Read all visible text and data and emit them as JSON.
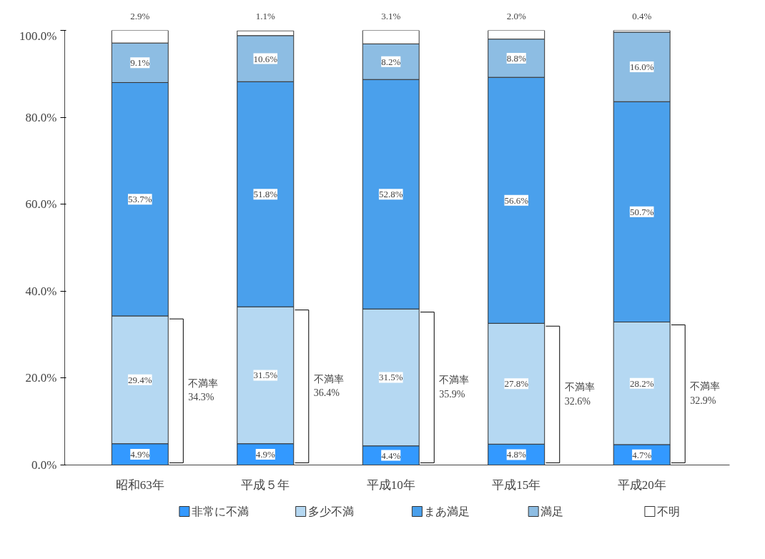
{
  "chart_data": {
    "type": "bar",
    "stacked": true,
    "categories": [
      "昭和63年",
      "平成５年",
      "平成10年",
      "平成15年",
      "平成20年"
    ],
    "series": [
      {
        "name": "非常に不満",
        "color": "#3399ff",
        "values": [
          4.9,
          4.9,
          4.4,
          4.8,
          4.7
        ],
        "value_labels": [
          "4.9%",
          "4.9%",
          "4.4%",
          "4.8%",
          "4.7%"
        ]
      },
      {
        "name": "多少不満",
        "color": "#b5d8f2",
        "values": [
          29.4,
          31.5,
          31.5,
          27.8,
          28.2
        ],
        "value_labels": [
          "29.4%",
          "31.5%",
          "31.5%",
          "27.8%",
          "28.2%"
        ]
      },
      {
        "name": "まあ満足",
        "color": "#4aa0ec",
        "values": [
          53.7,
          51.8,
          52.8,
          56.6,
          50.7
        ],
        "value_labels": [
          "53.7%",
          "51.8%",
          "52.8%",
          "56.6%",
          "50.7%"
        ]
      },
      {
        "name": "満足",
        "color": "#8dbde3",
        "values": [
          9.1,
          10.6,
          8.2,
          8.8,
          16.0
        ],
        "value_labels": [
          "9.1%",
          "10.6%",
          "8.2%",
          "8.8%",
          "16.0%"
        ]
      },
      {
        "name": "不明",
        "color": "#ffffff",
        "values": [
          2.9,
          1.1,
          3.1,
          2.0,
          0.4
        ],
        "value_labels": [
          "2.9%",
          "1.1%",
          "3.1%",
          "2.0%",
          "0.4%"
        ]
      }
    ],
    "ylim": [
      0,
      100
    ],
    "yticks": [
      {
        "value": 0,
        "label": "0.0%"
      },
      {
        "value": 20,
        "label": "20.0%"
      },
      {
        "value": 40,
        "label": "40.0%"
      },
      {
        "value": 60,
        "label": "60.0%"
      },
      {
        "value": 80,
        "label": "80.0%"
      },
      {
        "value": 100,
        "label": "100.0%"
      }
    ],
    "annotations": [
      "不満率\n34.3%",
      "不満率\n36.4%",
      "不満率\n35.9%",
      "不満率\n32.6%",
      "不満率\n32.9%"
    ],
    "grid": false,
    "legend": "bottom"
  }
}
